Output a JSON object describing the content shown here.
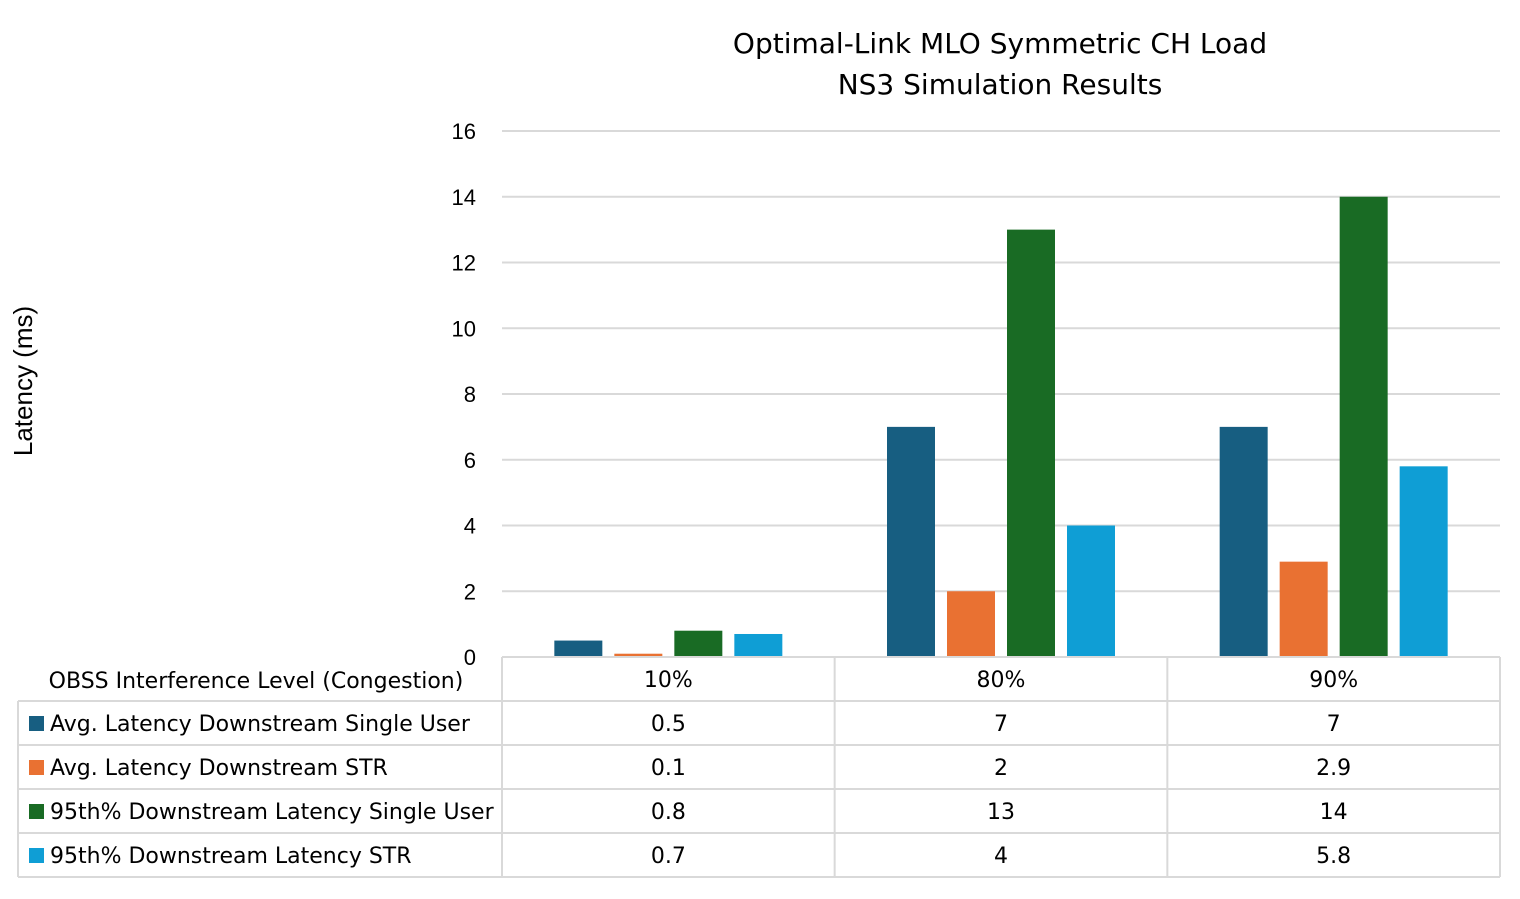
{
  "chart_data": {
    "type": "bar",
    "title": [
      "Optimal-Link MLO Symmetric CH Load",
      "NS3 Simulation Results"
    ],
    "xlabel": "OBSS Interference Level (Congestion)",
    "ylabel": "Latency (ms)",
    "ylim": [
      0,
      16
    ],
    "yticks": [
      0,
      2,
      4,
      6,
      8,
      10,
      12,
      14,
      16
    ],
    "grid": true,
    "legend": "data-table-bottom",
    "categories": [
      "10%",
      "80%",
      "90%"
    ],
    "series": [
      {
        "name": "Avg. Latency Downstream Single User",
        "color": "#175e81",
        "values": [
          0.5,
          7,
          7
        ]
      },
      {
        "name": "Avg. Latency Downstream STR",
        "color": "#e97132",
        "values": [
          0.1,
          2,
          2.9
        ]
      },
      {
        "name": "95th% Downstream Latency Single User",
        "color": "#196b24",
        "values": [
          0.8,
          13,
          14
        ]
      },
      {
        "name": "95th% Downstream Latency STR",
        "color": "#0f9ed5",
        "values": [
          0.7,
          4,
          5.8
        ]
      }
    ]
  }
}
